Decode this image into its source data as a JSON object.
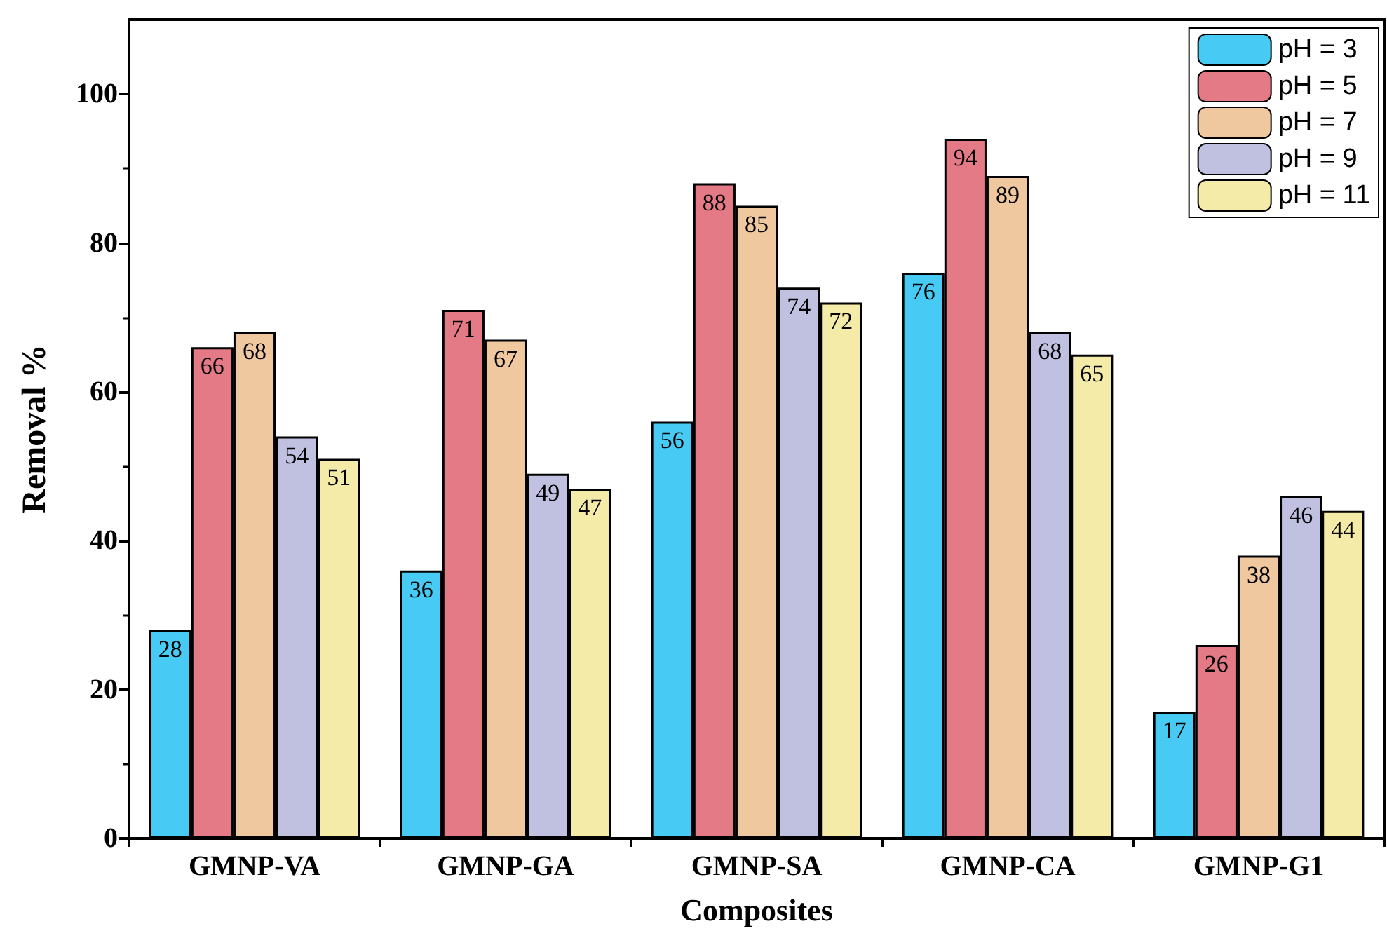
{
  "chart_data": {
    "type": "bar",
    "xlabel": "Composites",
    "ylabel": "Removal %",
    "categories": [
      "GMNP-VA",
      "GMNP-GA",
      "GMNP-SA",
      "GMNP-CA",
      "GMNP-G1"
    ],
    "series": [
      {
        "name": "pH = 3",
        "color": "#47cbf5",
        "values": [
          28,
          36,
          56,
          76,
          17
        ]
      },
      {
        "name": "pH = 5",
        "color": "#e47a85",
        "values": [
          66,
          71,
          88,
          94,
          26
        ]
      },
      {
        "name": "pH = 7",
        "color": "#f0c8a0",
        "values": [
          68,
          67,
          85,
          89,
          38
        ]
      },
      {
        "name": "pH = 9",
        "color": "#c0c0e0",
        "values": [
          54,
          49,
          74,
          68,
          46
        ]
      },
      {
        "name": "pH = 11",
        "color": "#f5eba8",
        "values": [
          51,
          47,
          72,
          65,
          44
        ]
      }
    ],
    "ylim": [
      0,
      110
    ],
    "yticks": [
      0,
      20,
      40,
      60,
      80,
      100
    ],
    "data_labels": true,
    "legend": "top right",
    "grid": false
  }
}
